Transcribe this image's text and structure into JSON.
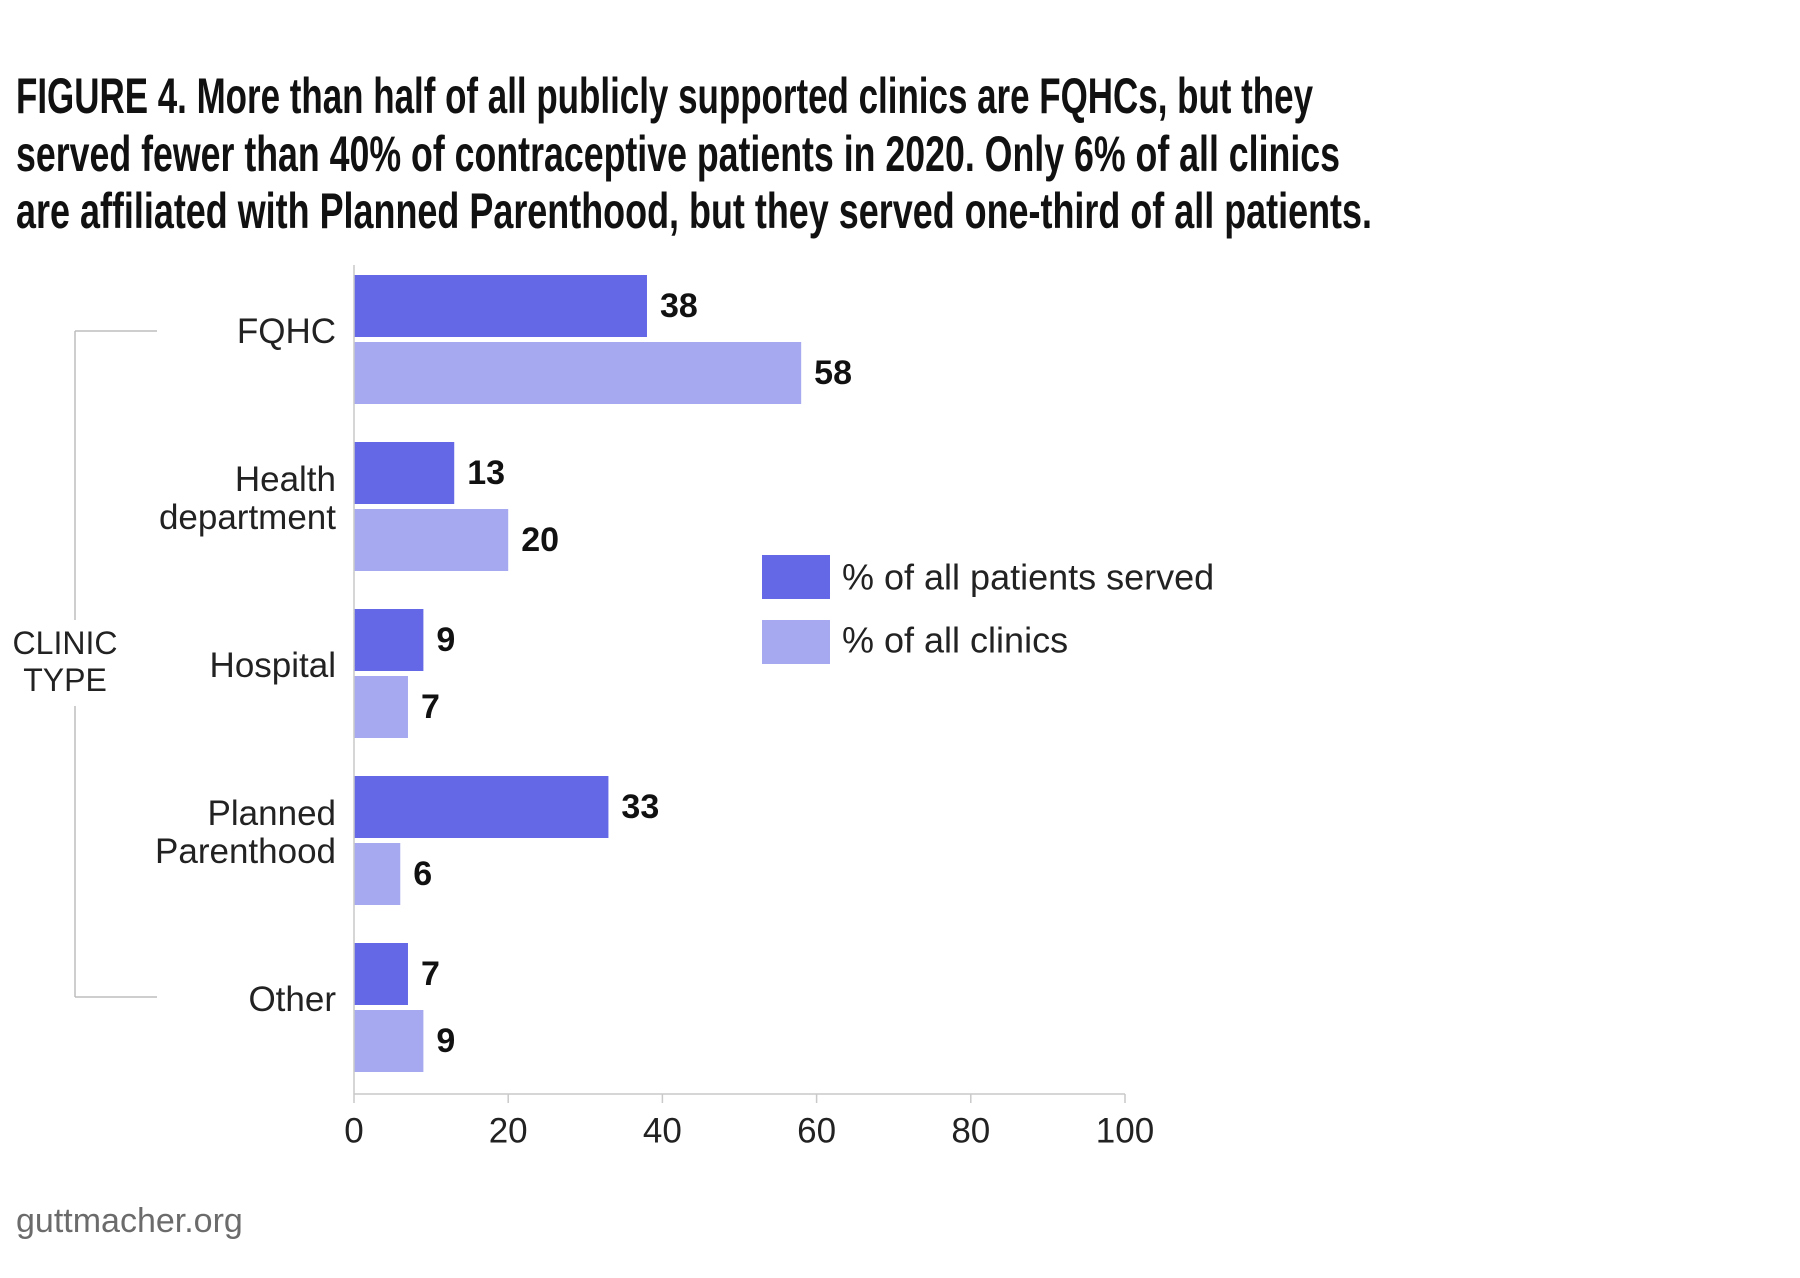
{
  "chart_data": {
    "type": "bar",
    "orientation": "horizontal",
    "title_lines": [
      "FIGURE 4. More than half of all publicly supported clinics are FQHCs, but they",
      "served fewer than 40% of contraceptive patients in 2020. Only 6% of all clinics",
      "are affiliated with Planned Parenthood, but they served one-third of all patients."
    ],
    "category_axis_label": "CLINIC TYPE",
    "categories": [
      "FQHC",
      "Health department",
      "Hospital",
      "Planned Parenthood",
      "Other"
    ],
    "series": [
      {
        "name": "% of all patients served",
        "values": [
          38,
          13,
          9,
          33,
          7
        ],
        "color": "#6467e6"
      },
      {
        "name": "% of all clinics",
        "values": [
          58,
          20,
          7,
          6,
          9
        ],
        "color": "#a6a9f0"
      }
    ],
    "xlabel": "",
    "xlim": [
      0,
      100
    ],
    "xticks": [
      0,
      20,
      40,
      60,
      80,
      100
    ],
    "grid": false,
    "data_labels": true,
    "legend_position": "right"
  },
  "footer": "guttmacher.org"
}
